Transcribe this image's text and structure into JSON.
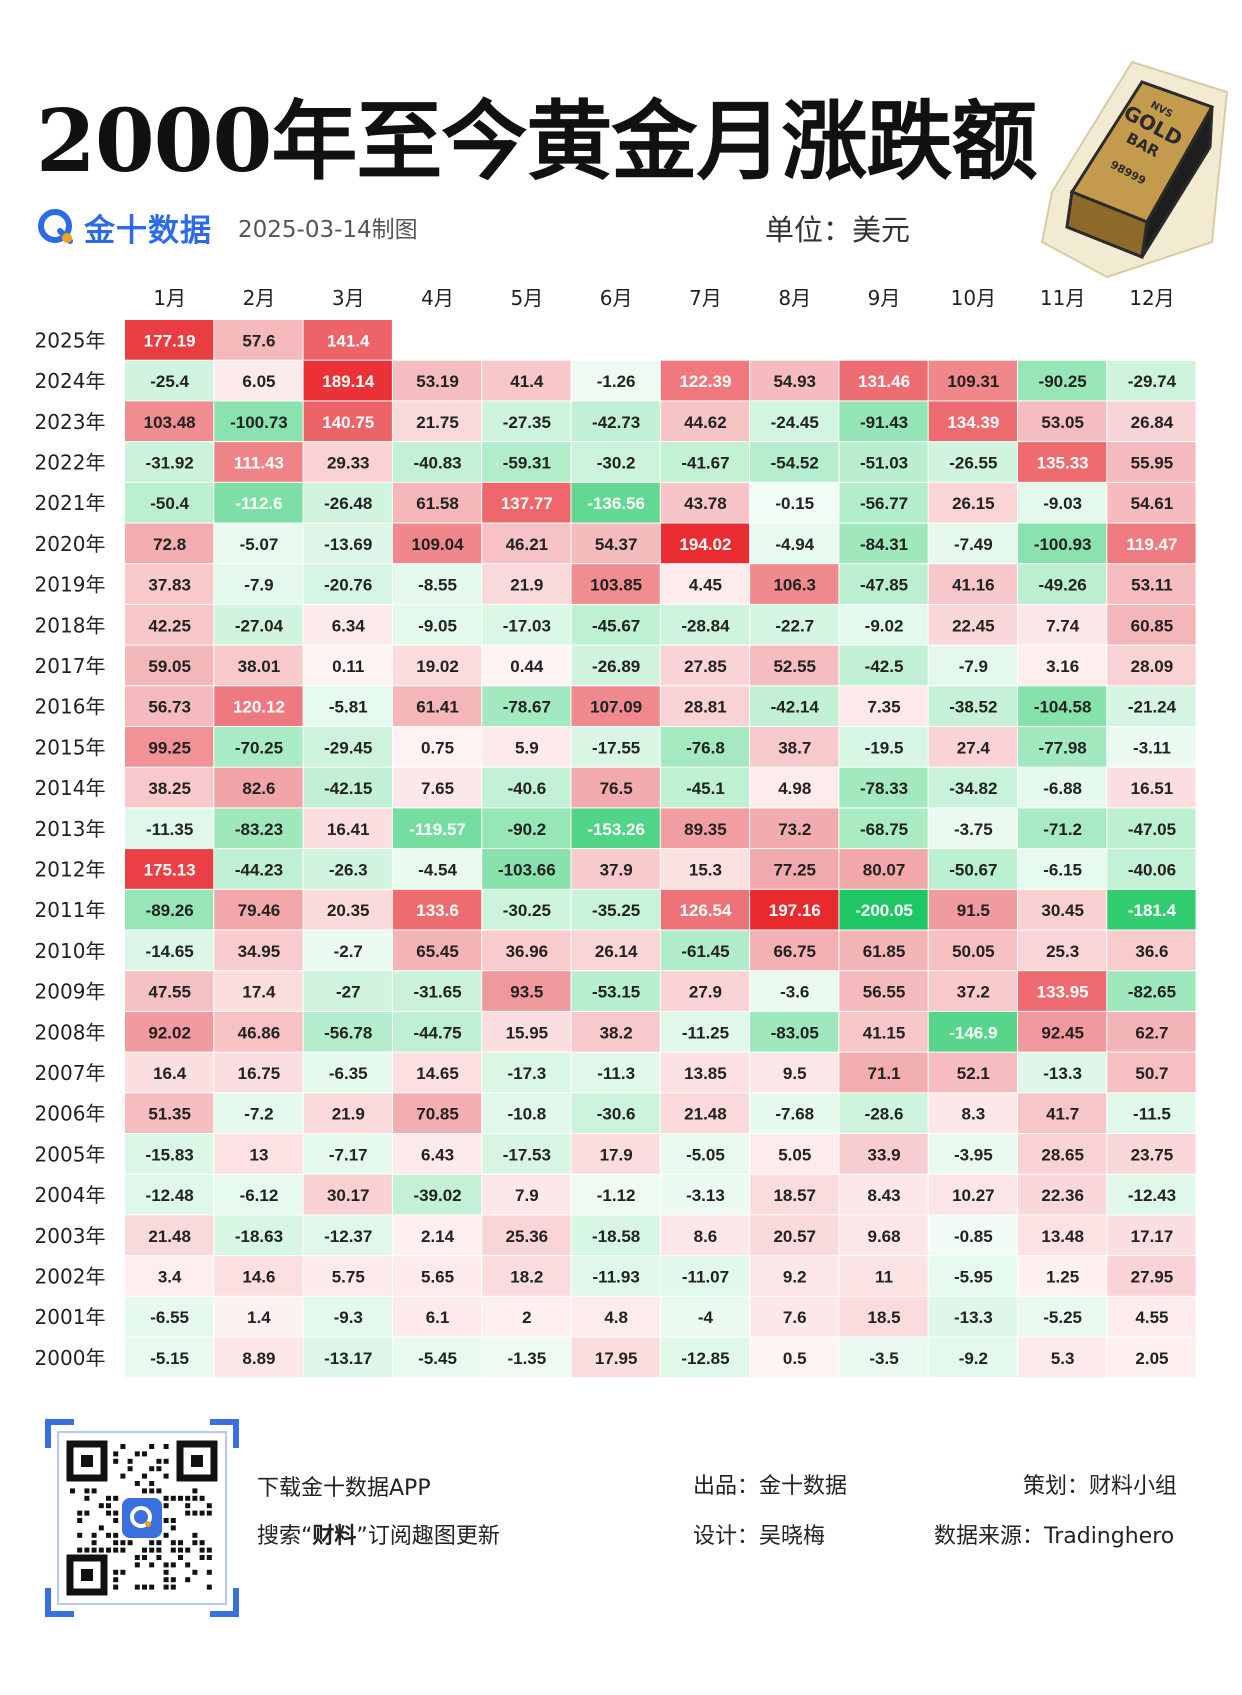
{
  "header": {
    "title": "2000年至今黄金月涨跌额",
    "brand": "金十数据",
    "date": "2025-03-14制图",
    "unit": "单位：美元"
  },
  "goldbar": {
    "line1": "NVS",
    "line2": "GOLD",
    "line3": "BAR",
    "line4": "98999"
  },
  "colors": {
    "positive": "#e8262b",
    "negative": "#1ec764",
    "brand": "#2d6be4"
  },
  "chart_data": {
    "type": "heatmap",
    "title": "2000年至今黄金月涨跌额",
    "columns": [
      "1月",
      "2月",
      "3月",
      "4月",
      "5月",
      "6月",
      "7月",
      "8月",
      "9月",
      "10月",
      "11月",
      "12月"
    ],
    "rows": [
      "2025年",
      "2024年",
      "2023年",
      "2022年",
      "2021年",
      "2020年",
      "2019年",
      "2018年",
      "2017年",
      "2016年",
      "2015年",
      "2014年",
      "2013年",
      "2012年",
      "2011年",
      "2010年",
      "2009年",
      "2008年",
      "2007年",
      "2006年",
      "2005年",
      "2004年",
      "2003年",
      "2002年",
      "2001年",
      "2000年"
    ],
    "values": [
      [
        "177.19",
        "57.6",
        "141.4",
        null,
        null,
        null,
        null,
        null,
        null,
        null,
        null,
        null
      ],
      [
        "-25.4",
        "6.05",
        "189.14",
        "53.19",
        "41.4",
        "-1.26",
        "122.39",
        "54.93",
        "131.46",
        "109.31",
        "-90.25",
        "-29.74"
      ],
      [
        "103.48",
        "-100.73",
        "140.75",
        "21.75",
        "-27.35",
        "-42.73",
        "44.62",
        "-24.45",
        "-91.43",
        "134.39",
        "53.05",
        "26.84"
      ],
      [
        "-31.92",
        "111.43",
        "29.33",
        "-40.83",
        "-59.31",
        "-30.2",
        "-41.67",
        "-54.52",
        "-51.03",
        "-26.55",
        "135.33",
        "55.95"
      ],
      [
        "-50.4",
        "-112.6",
        "-26.48",
        "61.58",
        "137.77",
        "-136.56",
        "43.78",
        "-0.15",
        "-56.77",
        "26.15",
        "-9.03",
        "54.61"
      ],
      [
        "72.8",
        "-5.07",
        "-13.69",
        "109.04",
        "46.21",
        "54.37",
        "194.02",
        "-4.94",
        "-84.31",
        "-7.49",
        "-100.93",
        "119.47"
      ],
      [
        "37.83",
        "-7.9",
        "-20.76",
        "-8.55",
        "21.9",
        "103.85",
        "4.45",
        "106.3",
        "-47.85",
        "41.16",
        "-49.26",
        "53.11"
      ],
      [
        "42.25",
        "-27.04",
        "6.34",
        "-9.05",
        "-17.03",
        "-45.67",
        "-28.84",
        "-22.7",
        "-9.02",
        "22.45",
        "7.74",
        "60.85"
      ],
      [
        "59.05",
        "38.01",
        "0.11",
        "19.02",
        "0.44",
        "-26.89",
        "27.85",
        "52.55",
        "-42.5",
        "-7.9",
        "3.16",
        "28.09"
      ],
      [
        "56.73",
        "120.12",
        "-5.81",
        "61.41",
        "-78.67",
        "107.09",
        "28.81",
        "-42.14",
        "7.35",
        "-38.52",
        "-104.58",
        "-21.24"
      ],
      [
        "99.25",
        "-70.25",
        "-29.45",
        "0.75",
        "5.9",
        "-17.55",
        "-76.8",
        "38.7",
        "-19.5",
        "27.4",
        "-77.98",
        "-3.11"
      ],
      [
        "38.25",
        "82.6",
        "-42.15",
        "7.65",
        "-40.6",
        "76.5",
        "-45.1",
        "4.98",
        "-78.33",
        "-34.82",
        "-6.88",
        "16.51"
      ],
      [
        "-11.35",
        "-83.23",
        "16.41",
        "-119.57",
        "-90.2",
        "-153.26",
        "89.35",
        "73.2",
        "-68.75",
        "-3.75",
        "-71.2",
        "-47.05"
      ],
      [
        "175.13",
        "-44.23",
        "-26.3",
        "-4.54",
        "-103.66",
        "37.9",
        "15.3",
        "77.25",
        "80.07",
        "-50.67",
        "-6.15",
        "-40.06"
      ],
      [
        "-89.26",
        "79.46",
        "20.35",
        "133.6",
        "-30.25",
        "-35.25",
        "126.54",
        "197.16",
        "-200.05",
        "91.5",
        "30.45",
        "-181.4"
      ],
      [
        "-14.65",
        "34.95",
        "-2.7",
        "65.45",
        "36.96",
        "26.14",
        "-61.45",
        "66.75",
        "61.85",
        "50.05",
        "25.3",
        "36.6"
      ],
      [
        "47.55",
        "17.4",
        "-27",
        "-31.65",
        "93.5",
        "-53.15",
        "27.9",
        "-3.6",
        "56.55",
        "37.2",
        "133.95",
        "-82.65"
      ],
      [
        "92.02",
        "46.86",
        "-56.78",
        "-44.75",
        "15.95",
        "38.2",
        "-11.25",
        "-83.05",
        "41.15",
        "-146.9",
        "92.45",
        "62.7"
      ],
      [
        "16.4",
        "16.75",
        "-6.35",
        "14.65",
        "-17.3",
        "-11.3",
        "13.85",
        "9.5",
        "71.1",
        "52.1",
        "-13.3",
        "50.7"
      ],
      [
        "51.35",
        "-7.2",
        "21.9",
        "70.85",
        "-10.8",
        "-30.6",
        "21.48",
        "-7.68",
        "-28.6",
        "8.3",
        "41.7",
        "-11.5"
      ],
      [
        "-15.83",
        "13",
        "-7.17",
        "6.43",
        "-17.53",
        "17.9",
        "-5.05",
        "5.05",
        "33.9",
        "-3.95",
        "28.65",
        "23.75"
      ],
      [
        "-12.48",
        "-6.12",
        "30.17",
        "-39.02",
        "7.9",
        "-1.12",
        "-3.13",
        "18.57",
        "8.43",
        "10.27",
        "22.36",
        "-12.43"
      ],
      [
        "21.48",
        "-18.63",
        "-12.37",
        "2.14",
        "25.36",
        "-18.58",
        "8.6",
        "20.57",
        "9.68",
        "-0.85",
        "13.48",
        "17.17"
      ],
      [
        "3.4",
        "14.6",
        "5.75",
        "5.65",
        "18.2",
        "-11.93",
        "-11.07",
        "9.2",
        "11",
        "-5.95",
        "1.25",
        "27.95"
      ],
      [
        "-6.55",
        "1.4",
        "-9.3",
        "6.1",
        "2",
        "4.8",
        "-4",
        "7.6",
        "18.5",
        "-13.3",
        "-5.25",
        "4.55"
      ],
      [
        "-5.15",
        "8.89",
        "-13.17",
        "-5.45",
        "-1.35",
        "17.95",
        "-12.85",
        "0.5",
        "-3.5",
        "-9.2",
        "5.3",
        "2.05"
      ]
    ]
  },
  "footer": {
    "download": "下载金十数据APP",
    "search_prefix": "搜索“",
    "search_bold": "财料",
    "search_suffix": "”订阅趣图更新",
    "producer": "出品：金十数据",
    "designer": "设计：吴晓梅",
    "planner": "策划：财料小组",
    "source": "数据来源：Tradinghero"
  }
}
